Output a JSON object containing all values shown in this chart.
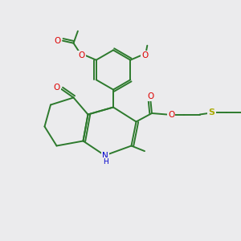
{
  "background_color": "#ebebed",
  "bond_color": "#2d7a2d",
  "bond_width": 1.4,
  "o_color": "#dd0000",
  "n_color": "#0000cc",
  "s_color": "#aaaa00",
  "figsize": [
    3.0,
    3.0
  ],
  "dpi": 100,
  "xlim": [
    0,
    10
  ],
  "ylim": [
    0,
    10
  ]
}
